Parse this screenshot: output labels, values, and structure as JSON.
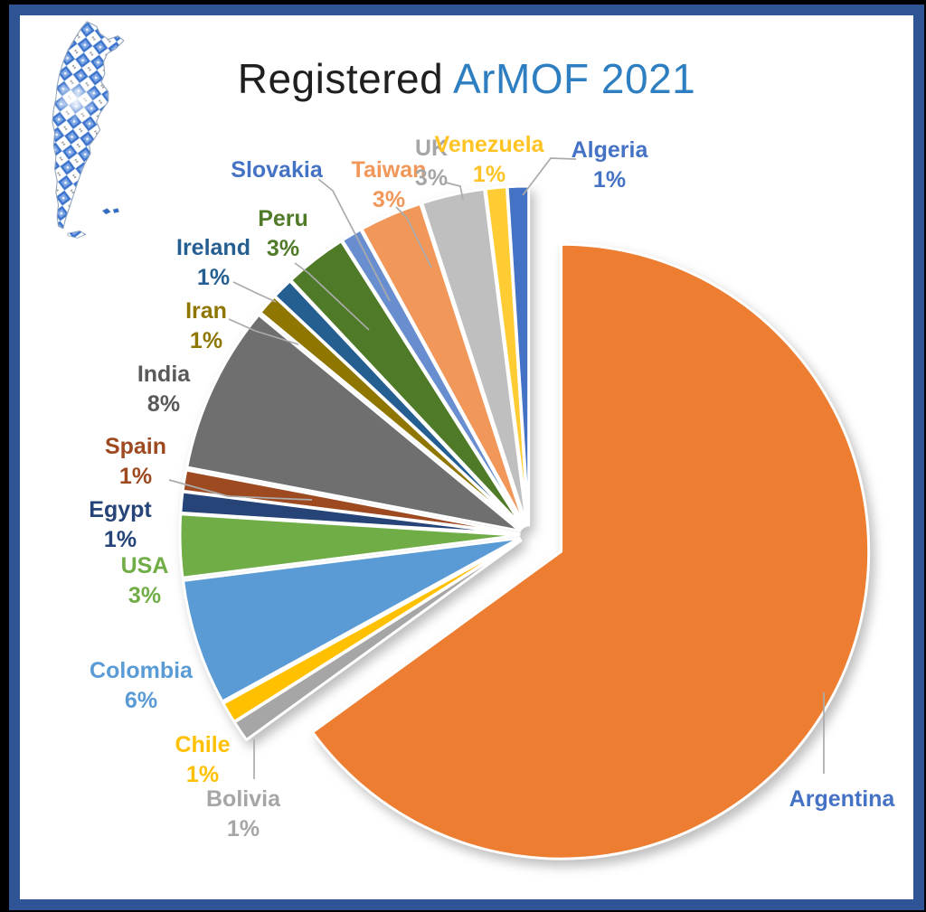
{
  "title": {
    "text_black": "Registered",
    "text_blue": "ArMOF 2021",
    "black_color": "#1f1f1f",
    "blue_color": "#2E7FC1"
  },
  "frame": {
    "border_color": "#2F5496",
    "background": "#000000",
    "slide_background": "#FFFFFF"
  },
  "decor": {
    "map_description": "argentina-map-made-of-MOF-crystals",
    "map_blue_dark": "#2F6AC8",
    "map_blue_light": "#7FA7E6"
  },
  "chart_data": {
    "type": "pie",
    "title": "Registered ArMOF 2021",
    "start_angle_deg": 0,
    "direction": "clockwise",
    "legend_position": "none",
    "labels_style": "outside-with-leader-lines",
    "slices": [
      {
        "name": "Argentina",
        "value": 65,
        "pct_label": null,
        "color": "#ED7D31",
        "label_color": "#4472C4"
      },
      {
        "name": "Bolivia",
        "value": 1,
        "pct_label": "1%",
        "color": "#A6A6A6",
        "label_color": "#A6A6A6"
      },
      {
        "name": "Chile",
        "value": 1,
        "pct_label": "1%",
        "color": "#FFC000",
        "label_color": "#FFC000"
      },
      {
        "name": "Colombia",
        "value": 6,
        "pct_label": "6%",
        "color": "#5B9BD5",
        "label_color": "#5B9BD5"
      },
      {
        "name": "USA",
        "value": 3,
        "pct_label": "3%",
        "color": "#70AD47",
        "label_color": "#70AD47"
      },
      {
        "name": "Egypt",
        "value": 1,
        "pct_label": "1%",
        "color": "#264478",
        "label_color": "#264478"
      },
      {
        "name": "Spain",
        "value": 1,
        "pct_label": "1%",
        "color": "#9E4A21",
        "label_color": "#9E4A21"
      },
      {
        "name": "India",
        "value": 8,
        "pct_label": "8%",
        "color": "#6F6F6F",
        "label_color": "#595959"
      },
      {
        "name": "Iran",
        "value": 1,
        "pct_label": "1%",
        "color": "#8F7600",
        "label_color": "#8F7600"
      },
      {
        "name": "Ireland",
        "value": 1,
        "pct_label": "1%",
        "color": "#255E91",
        "label_color": "#255E91"
      },
      {
        "name": "Peru",
        "value": 3,
        "pct_label": "3%",
        "color": "#4F7A28",
        "label_color": "#4F7A28"
      },
      {
        "name": "Slovakia",
        "value": 1,
        "pct_label": null,
        "color": "#698ED0",
        "label_color": "#4472C4"
      },
      {
        "name": "Taiwan",
        "value": 3,
        "pct_label": "3%",
        "color": "#F1975A",
        "label_color": "#F1975A"
      },
      {
        "name": "UK",
        "value": 3,
        "pct_label": "3%",
        "color": "#BFBFBF",
        "label_color": "#A6A6A6"
      },
      {
        "name": "Venezuela",
        "value": 1,
        "pct_label": "1%",
        "color": "#FFCD33",
        "label_color": "#FFC423"
      },
      {
        "name": "Algeria",
        "value": 1,
        "pct_label": "1%",
        "color": "#4472C4",
        "label_color": "#4472C4"
      }
    ]
  }
}
